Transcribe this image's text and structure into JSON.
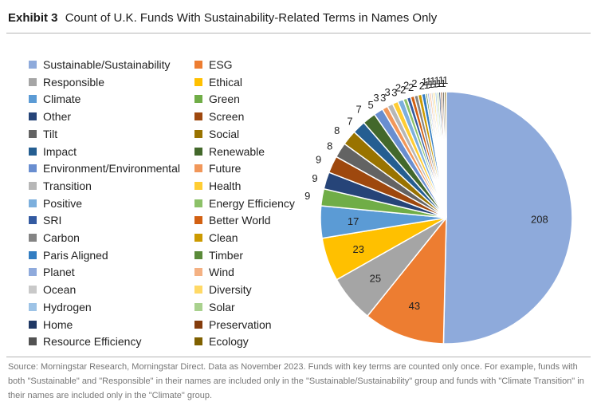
{
  "header": {
    "exhibit": "Exhibit 3",
    "title": "Count of U.K. Funds With Sustainability-Related Terms in Names Only"
  },
  "source": "Source: Morningstar Research, Morningstar Direct. Data as November 2023. Funds with key terms are counted only once. For example, funds with both \"Sustainable\" and \"Responsible\" in their names are included only in the \"Sustainable/Sustainability\" group and funds with \"Climate Transition\" in their names are included only in the \"Climate\" group.",
  "chart_data": {
    "type": "pie",
    "title": "",
    "legend_position": "left",
    "start": "12 o'clock",
    "direction": "clockwise",
    "slices": [
      {
        "label": "Sustainable/Sustainability",
        "value": 208,
        "color": "#8eaadb"
      },
      {
        "label": "ESG",
        "value": 43,
        "color": "#ed7d31"
      },
      {
        "label": "Responsible",
        "value": 25,
        "color": "#a5a5a5"
      },
      {
        "label": "Ethical",
        "value": 23,
        "color": "#ffc000"
      },
      {
        "label": "Climate",
        "value": 17,
        "color": "#5b9bd5"
      },
      {
        "label": "Green",
        "value": 9,
        "color": "#70ad47"
      },
      {
        "label": "Other",
        "value": 9,
        "color": "#264478"
      },
      {
        "label": "Screen",
        "value": 9,
        "color": "#9e480e"
      },
      {
        "label": "Tilt",
        "value": 8,
        "color": "#636363"
      },
      {
        "label": "Social",
        "value": 8,
        "color": "#997300"
      },
      {
        "label": "Impact",
        "value": 7,
        "color": "#255e91"
      },
      {
        "label": "Renewable",
        "value": 7,
        "color": "#43682b"
      },
      {
        "label": "Environment/Environmental",
        "value": 5,
        "color": "#698ed0"
      },
      {
        "label": "Future",
        "value": 3,
        "color": "#f1975a"
      },
      {
        "label": "Transition",
        "value": 3,
        "color": "#b7b7b7"
      },
      {
        "label": "Health",
        "value": 3,
        "color": "#ffcd33"
      },
      {
        "label": "Positive",
        "value": 3,
        "color": "#7cafdd"
      },
      {
        "label": "Energy Efficiency",
        "value": 2,
        "color": "#8cc168"
      },
      {
        "label": "SRI",
        "value": 2,
        "color": "#335aa1"
      },
      {
        "label": "Better World",
        "value": 2,
        "color": "#d26012"
      },
      {
        "label": "Carbon",
        "value": 2,
        "color": "#848484"
      },
      {
        "label": "Clean",
        "value": 2,
        "color": "#cc9a00"
      },
      {
        "label": "Paris Aligned",
        "value": 2,
        "color": "#327dc2"
      },
      {
        "label": "Timber",
        "value": 1,
        "color": "#5a8a39"
      },
      {
        "label": "Planet",
        "value": 1,
        "color": "#8faadc"
      },
      {
        "label": "Wind",
        "value": 1,
        "color": "#f4b183"
      },
      {
        "label": "Ocean",
        "value": 1,
        "color": "#c9c9c9"
      },
      {
        "label": "Diversity",
        "value": 1,
        "color": "#ffd966"
      },
      {
        "label": "Hydrogen",
        "value": 1,
        "color": "#9dc3e6"
      },
      {
        "label": "Solar",
        "value": 1,
        "color": "#a9d18e"
      },
      {
        "label": "Home",
        "value": 1,
        "color": "#1f3864"
      },
      {
        "label": "Preservation",
        "value": 1,
        "color": "#843c0c"
      },
      {
        "label": "Resource Efficiency",
        "value": 1,
        "color": "#525252"
      },
      {
        "label": "Ecology",
        "value": 1,
        "color": "#7f6000"
      }
    ]
  }
}
